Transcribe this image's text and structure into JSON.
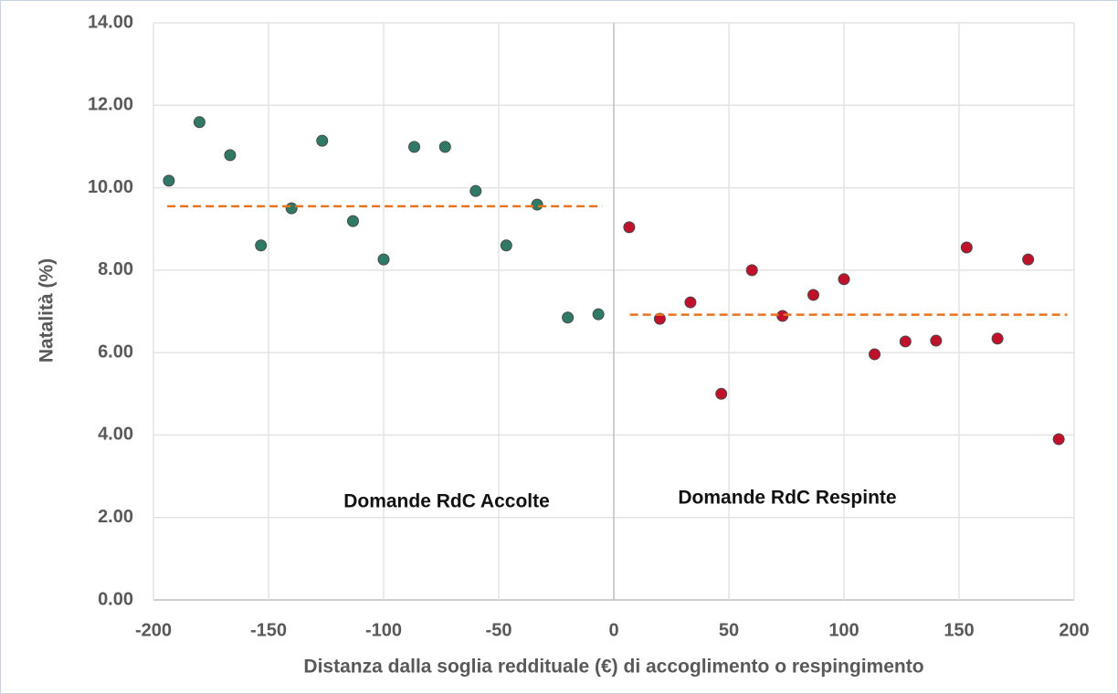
{
  "chart_data": {
    "type": "scatter",
    "x_label": "Distanza dalla soglia reddituale (€) di accoglimento o respingimento",
    "y_label": "Natalità (%)",
    "xlim": [
      -200,
      200
    ],
    "xticks": [
      -200,
      -150,
      -100,
      -50,
      0,
      50,
      100,
      150,
      200
    ],
    "ylim": [
      0,
      14
    ],
    "yticks": [
      {
        "value": 0,
        "label": "0.00"
      },
      {
        "value": 2,
        "label": "2.00"
      },
      {
        "value": 4,
        "label": "4.00"
      },
      {
        "value": 6,
        "label": "6.00"
      },
      {
        "value": 8,
        "label": "8.00"
      },
      {
        "value": 10,
        "label": "10.00"
      },
      {
        "value": 12,
        "label": "12.00"
      },
      {
        "value": 14,
        "label": "14.00"
      }
    ],
    "grid": true,
    "annotations": [
      "Domande RdC Accolte",
      "Domande RdC Respinte"
    ],
    "series": [
      {
        "color": "#2f7a66",
        "mark": "point",
        "x": [
          -193.3,
          -180,
          -166.7,
          -153.3,
          -140,
          -126.7,
          -113.3,
          -100,
          -86.7,
          -73.3,
          -60,
          -46.7,
          -33.3,
          -20,
          -6.7
        ],
        "values": [
          10.17,
          11.59,
          10.79,
          8.6,
          9.5,
          11.14,
          9.19,
          8.26,
          10.99,
          10.99,
          9.92,
          8.6,
          9.59,
          6.85,
          6.93
        ]
      },
      {
        "color": "#c0102a",
        "mark": "point",
        "x": [
          6.7,
          20,
          33.3,
          46.7,
          60,
          73.3,
          86.7,
          100,
          113.3,
          126.7,
          140,
          153.3,
          166.7,
          180,
          193.3
        ],
        "values": [
          9.04,
          6.82,
          7.22,
          5.0,
          8.0,
          6.89,
          7.4,
          7.78,
          5.96,
          6.27,
          6.29,
          8.55,
          6.34,
          8.26,
          3.9
        ]
      },
      {
        "color": "#e8731f",
        "mark": "dashed-line",
        "x": [
          -194,
          -5
        ],
        "values": [
          9.55,
          9.55
        ]
      },
      {
        "color": "#e8731f",
        "mark": "dashed-line",
        "x": [
          7,
          197
        ],
        "values": [
          6.92,
          6.92
        ]
      }
    ]
  }
}
